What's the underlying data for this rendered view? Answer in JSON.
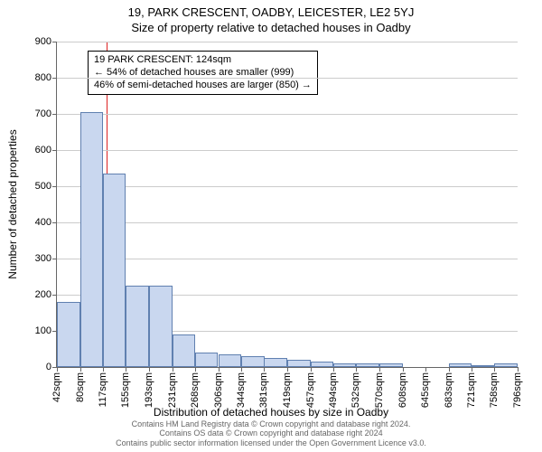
{
  "title_line1": "19, PARK CRESCENT, OADBY, LEICESTER, LE2 5YJ",
  "title_line2": "Size of property relative to detached houses in Oadby",
  "ylabel": "Number of detached properties",
  "xlabel": "Distribution of detached houses by size in Oadby",
  "footer_line1": "Contains HM Land Registry data © Crown copyright and database right 2024.",
  "footer_line2": "Contains OS data © Crown copyright and database right 2024",
  "footer_line3": "Contains public sector information licensed under the Open Government Licence v3.0.",
  "annotation": {
    "line1": "19 PARK CRESCENT: 124sqm",
    "line2": "← 54% of detached houses are smaller (999)",
    "line3": "46% of semi-detached houses are larger (850) →"
  },
  "chart": {
    "type": "histogram",
    "x_min": 42,
    "x_max": 796,
    "y_min": 0,
    "y_max": 900,
    "y_step": 100,
    "reference_x": 124,
    "bar_outline_color": "#6080b0",
    "bar_fill_color": "#c9d7ef",
    "grid_color": "#cccccc",
    "refline_color": "#d22",
    "x_ticks": [
      42,
      80,
      117,
      155,
      193,
      231,
      268,
      306,
      344,
      381,
      419,
      457,
      494,
      532,
      570,
      608,
      645,
      683,
      721,
      758,
      796
    ],
    "bin_width": 37.7,
    "bars": [
      180,
      705,
      535,
      225,
      225,
      90,
      40,
      35,
      30,
      25,
      20,
      15,
      10,
      10,
      10,
      0,
      0,
      10,
      5,
      10
    ]
  }
}
